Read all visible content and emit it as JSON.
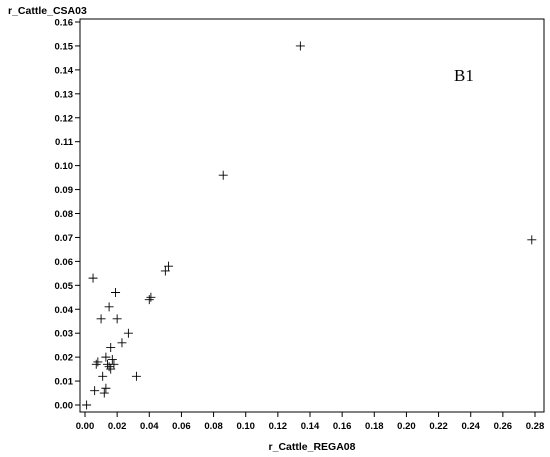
{
  "chart_data": {
    "type": "scatter",
    "title": "",
    "panel_label": "B1",
    "xlabel": "r_Cattle_REGA08",
    "ylabel": "r_Cattle_CSA03",
    "xlim": [
      0,
      0.28
    ],
    "ylim": [
      0,
      0.16
    ],
    "x_ticks": [
      "0.00",
      "0.02",
      "0.04",
      "0.06",
      "0.08",
      "0.10",
      "0.12",
      "0.14",
      "0.16",
      "0.18",
      "0.20",
      "0.22",
      "0.24",
      "0.26",
      "0.28"
    ],
    "y_ticks": [
      "0.00",
      "0.01",
      "0.02",
      "0.03",
      "0.04",
      "0.05",
      "0.06",
      "0.07",
      "0.08",
      "0.09",
      "0.10",
      "0.11",
      "0.12",
      "0.13",
      "0.14",
      "0.15",
      "0.16"
    ],
    "grid": false,
    "marker": "plus",
    "points": [
      {
        "x": 0.001,
        "y": 0.0
      },
      {
        "x": 0.005,
        "y": 0.053
      },
      {
        "x": 0.006,
        "y": 0.006
      },
      {
        "x": 0.007,
        "y": 0.017
      },
      {
        "x": 0.008,
        "y": 0.018
      },
      {
        "x": 0.01,
        "y": 0.036
      },
      {
        "x": 0.011,
        "y": 0.012
      },
      {
        "x": 0.012,
        "y": 0.005
      },
      {
        "x": 0.013,
        "y": 0.007
      },
      {
        "x": 0.013,
        "y": 0.02
      },
      {
        "x": 0.014,
        "y": 0.017
      },
      {
        "x": 0.015,
        "y": 0.016
      },
      {
        "x": 0.015,
        "y": 0.041
      },
      {
        "x": 0.016,
        "y": 0.024
      },
      {
        "x": 0.016,
        "y": 0.015
      },
      {
        "x": 0.017,
        "y": 0.019
      },
      {
        "x": 0.018,
        "y": 0.017
      },
      {
        "x": 0.019,
        "y": 0.047
      },
      {
        "x": 0.02,
        "y": 0.036
      },
      {
        "x": 0.023,
        "y": 0.026
      },
      {
        "x": 0.027,
        "y": 0.03
      },
      {
        "x": 0.032,
        "y": 0.012
      },
      {
        "x": 0.04,
        "y": 0.044
      },
      {
        "x": 0.041,
        "y": 0.045
      },
      {
        "x": 0.05,
        "y": 0.056
      },
      {
        "x": 0.052,
        "y": 0.058
      },
      {
        "x": 0.086,
        "y": 0.096
      },
      {
        "x": 0.134,
        "y": 0.15
      },
      {
        "x": 0.278,
        "y": 0.069
      }
    ]
  }
}
